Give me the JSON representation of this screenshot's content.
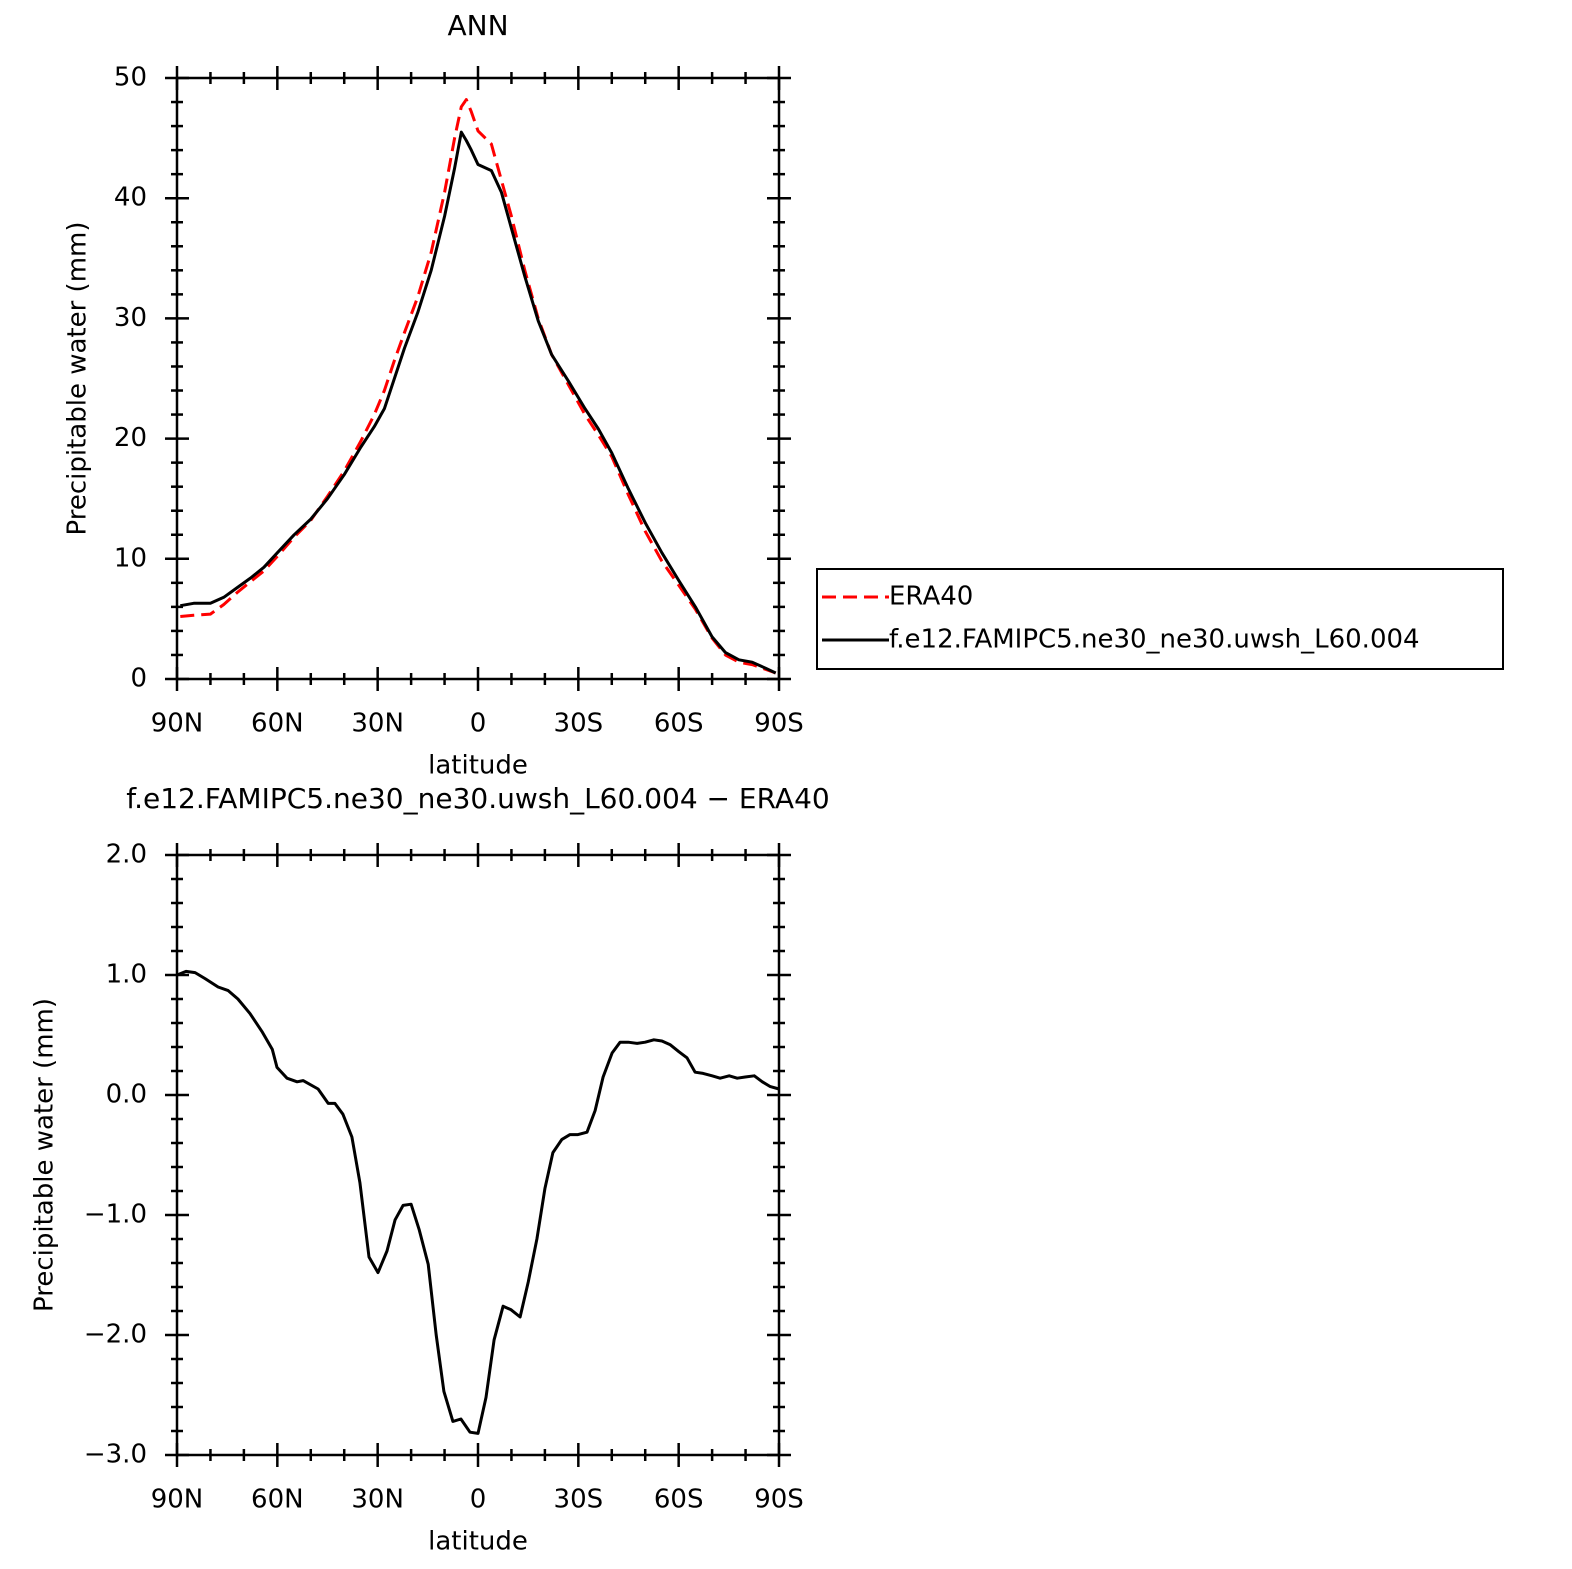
{
  "chart_data": [
    {
      "type": "line",
      "title": "ANN",
      "xlabel": "latitude",
      "ylabel": "Precipitable water (mm)",
      "x": [
        89,
        85,
        80,
        76,
        72,
        68,
        64,
        60,
        55,
        50,
        45,
        40,
        35,
        31,
        28,
        25,
        22,
        18,
        14,
        10,
        7,
        5,
        3.5,
        2,
        0,
        -4,
        -7,
        -10,
        -14,
        -18,
        -22,
        -27,
        -32,
        -36,
        -40,
        -45,
        -50,
        -55,
        -60,
        -65,
        -70,
        -74,
        -78,
        -82,
        -86,
        -89
      ],
      "series": [
        {
          "name": "ERA40",
          "color": "#ff0000",
          "dashed": true,
          "values": [
            5.2,
            5.3,
            5.4,
            6.2,
            7.2,
            8.1,
            9.0,
            10.2,
            11.8,
            13.2,
            15.2,
            17.3,
            19.8,
            22.0,
            24.0,
            26.5,
            28.8,
            31.8,
            35.5,
            40.5,
            45.0,
            47.6,
            48.2,
            47.2,
            45.6,
            44.5,
            41.5,
            38.5,
            34.0,
            30.0,
            27.0,
            24.5,
            22.0,
            20.3,
            18.5,
            15.3,
            12.3,
            9.8,
            7.8,
            5.8,
            3.4,
            2.0,
            1.4,
            1.2,
            0.8,
            0.5
          ]
        },
        {
          "name": "f.e12.FAMIPC5.ne30_ne30.uwsh_L60.004",
          "color": "#000000",
          "dashed": false,
          "values": [
            6.1,
            6.3,
            6.3,
            6.8,
            7.6,
            8.4,
            9.3,
            10.5,
            12.0,
            13.3,
            15.0,
            17.0,
            19.3,
            21.0,
            22.5,
            25.0,
            27.5,
            30.5,
            34.0,
            38.5,
            42.5,
            45.5,
            44.8,
            44.0,
            42.8,
            42.3,
            40.5,
            37.5,
            33.5,
            29.8,
            27.0,
            24.8,
            22.5,
            20.8,
            18.8,
            15.8,
            13.0,
            10.5,
            8.2,
            6.0,
            3.5,
            2.2,
            1.6,
            1.4,
            0.9,
            0.5
          ]
        }
      ],
      "xlim": [
        90,
        -90
      ],
      "xticks": [
        {
          "value": 90,
          "label": "90N"
        },
        {
          "value": 60,
          "label": "60N"
        },
        {
          "value": 30,
          "label": "30N"
        },
        0,
        {
          "value": -30,
          "label": "30S"
        },
        {
          "value": -60,
          "label": "60S"
        },
        {
          "value": -90,
          "label": "90S"
        }
      ],
      "xminorticks": [
        80,
        70,
        50,
        40,
        20,
        10,
        -10,
        -20,
        -40,
        -50,
        -70,
        -80
      ],
      "ylim": [
        0,
        50
      ],
      "yticks": [
        0,
        10,
        20,
        30,
        40,
        50
      ],
      "yminorticks": [
        2,
        4,
        6,
        8,
        12,
        14,
        16,
        18,
        22,
        24,
        26,
        28,
        32,
        34,
        36,
        38,
        42,
        44,
        46,
        48
      ],
      "legend": "right"
    },
    {
      "type": "line",
      "title": "f.e12.FAMIPC5.ne30_ne30.uwsh_L60.004 − ERA40",
      "xlabel": "latitude",
      "ylabel": "Precipitable water (mm)",
      "x": [
        90,
        87.3,
        84.6,
        81.6,
        77.7,
        74.7,
        71.8,
        68.2,
        64.6,
        61.5,
        60.1,
        57.1,
        54.1,
        52.3,
        47.8,
        44.8,
        42.8,
        40.4,
        37.7,
        35.3,
        32.6,
        29.9,
        27.2,
        24.8,
        22.4,
        20.0,
        17.6,
        14.9,
        12.5,
        10.2,
        7.5,
        5.1,
        2.4,
        0,
        -2.4,
        -4.8,
        -7.5,
        -9.9,
        -12.6,
        -15.0,
        -17.6,
        -20.0,
        -22.4,
        -25.1,
        -27.5,
        -29.9,
        -32.6,
        -35.0,
        -37.4,
        -40.1,
        -42.5,
        -44.9,
        -47.6,
        -50.0,
        -52.6,
        -55.0,
        -57.4,
        -60.1,
        -62.5,
        -64.9,
        -67.3,
        -70.0,
        -72.4,
        -75.1,
        -77.5,
        -79.9,
        -82.6,
        -85.0,
        -87.4,
        -90
      ],
      "color": "#000000",
      "values": [
        1.0,
        1.03,
        1.02,
        0.97,
        0.9,
        0.87,
        0.8,
        0.68,
        0.53,
        0.38,
        0.23,
        0.14,
        0.11,
        0.12,
        0.05,
        -0.07,
        -0.07,
        -0.16,
        -0.35,
        -0.73,
        -1.35,
        -1.48,
        -1.3,
        -1.04,
        -0.92,
        -0.91,
        -1.12,
        -1.41,
        -2.0,
        -2.47,
        -2.72,
        -2.7,
        -2.81,
        -2.82,
        -2.52,
        -2.04,
        -1.76,
        -1.79,
        -1.85,
        -1.56,
        -1.2,
        -0.78,
        -0.48,
        -0.37,
        -0.33,
        -0.33,
        -0.31,
        -0.13,
        0.15,
        0.35,
        0.44,
        0.44,
        0.43,
        0.44,
        0.46,
        0.45,
        0.42,
        0.36,
        0.31,
        0.19,
        0.18,
        0.16,
        0.14,
        0.16,
        0.14,
        0.15,
        0.16,
        0.11,
        0.07,
        0.05
      ],
      "xlim": [
        90,
        -90
      ],
      "xticks": [
        {
          "value": 90,
          "label": "90N"
        },
        {
          "value": 60,
          "label": "60N"
        },
        {
          "value": 30,
          "label": "30N"
        },
        0,
        {
          "value": -30,
          "label": "30S"
        },
        {
          "value": -60,
          "label": "60S"
        },
        {
          "value": -90,
          "label": "90S"
        }
      ],
      "xminorticks": [
        80,
        70,
        50,
        40,
        20,
        10,
        -10,
        -20,
        -40,
        -50,
        -70,
        -80
      ],
      "ylim": [
        -3,
        2
      ],
      "yticks": [
        {
          "value": -3,
          "label": "−3.0"
        },
        {
          "value": -2,
          "label": "−2.0"
        },
        {
          "value": -1,
          "label": "−1.0"
        },
        {
          "value": 0,
          "label": "0.0"
        },
        {
          "value": 1,
          "label": "1.0"
        },
        {
          "value": 2,
          "label": "2.0"
        }
      ],
      "yminorticks": [
        -2.8,
        -2.6,
        -2.4,
        -2.2,
        -1.8,
        -1.6,
        -1.4,
        -1.2,
        -0.8,
        -0.6,
        -0.4,
        -0.2,
        0.2,
        0.4,
        0.6,
        0.8,
        1.2,
        1.4,
        1.6,
        1.8
      ]
    }
  ]
}
